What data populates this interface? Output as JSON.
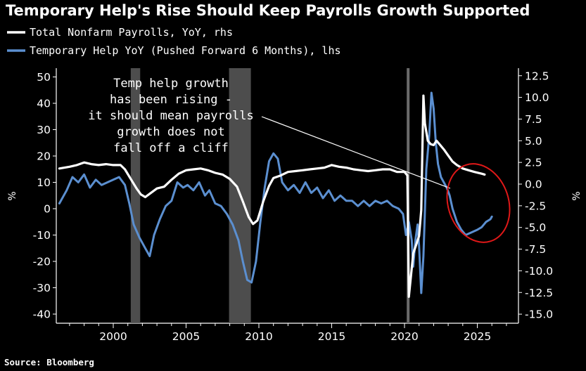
{
  "chart_data": {
    "type": "line",
    "title": "Temporary Help's Rise Should Keep Payrolls Growth Supported",
    "source": "Source: Bloomberg",
    "left_axis": {
      "label": "%",
      "ylim": [
        -45,
        55
      ],
      "ticks": [
        50,
        40,
        30,
        20,
        10,
        0,
        -10,
        -20,
        -30,
        -40
      ],
      "tick_labels": [
        "50",
        "40",
        "30",
        "20",
        "10",
        "0",
        "-10",
        "-20",
        "-30",
        "-40"
      ]
    },
    "right_axis": {
      "label": "%",
      "ylim": [
        -15.5,
        14.1
      ],
      "ticks": [
        12.5,
        10,
        7.5,
        5,
        2.5,
        0,
        -2.5,
        -5,
        -7.5,
        -10,
        -12.5,
        -15
      ],
      "tick_labels": [
        "12.5",
        "10.0",
        "7.5",
        "5.0",
        "2.5",
        "0.0",
        "-2.5",
        "-5.0",
        "-7.5",
        "-10.0",
        "-12.5",
        "-15.0"
      ]
    },
    "x_axis": {
      "xlim": [
        1996.3,
        2027.4
      ],
      "ticks": [
        2000,
        2005,
        2010,
        2015,
        2020,
        2025
      ],
      "tick_labels": [
        "2000",
        "2005",
        "2010",
        "2015",
        "2020",
        "2025"
      ]
    },
    "recessions": [
      {
        "start": 2001.2,
        "end": 2001.85
      },
      {
        "start": 2007.95,
        "end": 2009.45
      }
    ],
    "covid_line_x": 2020.25,
    "series": [
      {
        "name": "Total Nonfarm Payrolls, YoY, rhs",
        "axis": "right",
        "color": "#ffffff",
        "points": [
          [
            1996.3,
            1.8
          ],
          [
            1997.0,
            2.0
          ],
          [
            1997.5,
            2.2
          ],
          [
            1998.0,
            2.5
          ],
          [
            1998.5,
            2.3
          ],
          [
            1999.0,
            2.2
          ],
          [
            1999.5,
            2.3
          ],
          [
            2000.0,
            2.2
          ],
          [
            2000.5,
            2.2
          ],
          [
            2000.8,
            1.7
          ],
          [
            2001.2,
            0.6
          ],
          [
            2001.6,
            -0.5
          ],
          [
            2001.9,
            -1.2
          ],
          [
            2002.2,
            -1.5
          ],
          [
            2002.6,
            -1.0
          ],
          [
            2003.0,
            -0.5
          ],
          [
            2003.5,
            -0.3
          ],
          [
            2004.0,
            0.5
          ],
          [
            2004.5,
            1.2
          ],
          [
            2005.0,
            1.6
          ],
          [
            2005.5,
            1.7
          ],
          [
            2006.0,
            1.8
          ],
          [
            2006.5,
            1.6
          ],
          [
            2007.0,
            1.3
          ],
          [
            2007.5,
            1.1
          ],
          [
            2008.0,
            0.6
          ],
          [
            2008.5,
            -0.3
          ],
          [
            2008.9,
            -2.0
          ],
          [
            2009.3,
            -3.8
          ],
          [
            2009.6,
            -4.6
          ],
          [
            2009.9,
            -4.2
          ],
          [
            2010.3,
            -2.0
          ],
          [
            2010.7,
            -0.2
          ],
          [
            2011.0,
            0.7
          ],
          [
            2011.5,
            1.0
          ],
          [
            2012.0,
            1.4
          ],
          [
            2012.5,
            1.5
          ],
          [
            2013.0,
            1.6
          ],
          [
            2013.5,
            1.7
          ],
          [
            2014.0,
            1.8
          ],
          [
            2014.5,
            1.9
          ],
          [
            2015.0,
            2.2
          ],
          [
            2015.5,
            2.0
          ],
          [
            2016.0,
            1.9
          ],
          [
            2016.5,
            1.7
          ],
          [
            2017.0,
            1.6
          ],
          [
            2017.5,
            1.5
          ],
          [
            2018.0,
            1.6
          ],
          [
            2018.5,
            1.7
          ],
          [
            2019.0,
            1.7
          ],
          [
            2019.5,
            1.4
          ],
          [
            2020.0,
            1.4
          ],
          [
            2020.2,
            1.0
          ],
          [
            2020.3,
            -13.0
          ],
          [
            2020.45,
            -10.5
          ],
          [
            2020.6,
            -8.0
          ],
          [
            2020.8,
            -7.0
          ],
          [
            2021.0,
            -6.0
          ],
          [
            2021.15,
            -3.0
          ],
          [
            2021.3,
            10.2
          ],
          [
            2021.4,
            7.0
          ],
          [
            2021.6,
            5.0
          ],
          [
            2021.8,
            4.6
          ],
          [
            2022.0,
            4.5
          ],
          [
            2022.2,
            5.0
          ],
          [
            2022.4,
            4.6
          ],
          [
            2022.7,
            4.0
          ],
          [
            2023.0,
            3.3
          ],
          [
            2023.3,
            2.6
          ],
          [
            2023.6,
            2.2
          ],
          [
            2024.0,
            1.8
          ],
          [
            2024.4,
            1.6
          ],
          [
            2024.8,
            1.4
          ],
          [
            2025.3,
            1.2
          ],
          [
            2025.5,
            1.1
          ]
        ]
      },
      {
        "name": "Temporary Help YoY (Pushed Forward 6 Months), lhs",
        "axis": "left",
        "color": "#5b8fd0",
        "points": [
          [
            1996.3,
            2
          ],
          [
            1996.8,
            7
          ],
          [
            1997.2,
            12
          ],
          [
            1997.6,
            10
          ],
          [
            1998.0,
            13
          ],
          [
            1998.4,
            8
          ],
          [
            1998.8,
            11
          ],
          [
            1999.2,
            9
          ],
          [
            1999.6,
            10
          ],
          [
            2000.0,
            11
          ],
          [
            2000.4,
            12
          ],
          [
            2000.8,
            9
          ],
          [
            2001.1,
            2
          ],
          [
            2001.4,
            -6
          ],
          [
            2001.8,
            -11
          ],
          [
            2002.2,
            -15
          ],
          [
            2002.5,
            -18
          ],
          [
            2002.8,
            -10
          ],
          [
            2003.2,
            -4
          ],
          [
            2003.6,
            1
          ],
          [
            2004.0,
            3
          ],
          [
            2004.4,
            10
          ],
          [
            2004.8,
            8
          ],
          [
            2005.1,
            9
          ],
          [
            2005.5,
            7
          ],
          [
            2005.9,
            10
          ],
          [
            2006.3,
            5
          ],
          [
            2006.6,
            7
          ],
          [
            2007.0,
            2
          ],
          [
            2007.4,
            1
          ],
          [
            2007.8,
            -2
          ],
          [
            2008.2,
            -6
          ],
          [
            2008.6,
            -12
          ],
          [
            2008.9,
            -20
          ],
          [
            2009.2,
            -27
          ],
          [
            2009.5,
            -28
          ],
          [
            2009.8,
            -20
          ],
          [
            2010.1,
            -5
          ],
          [
            2010.4,
            8
          ],
          [
            2010.7,
            18
          ],
          [
            2011.0,
            21
          ],
          [
            2011.3,
            19
          ],
          [
            2011.6,
            10
          ],
          [
            2012.0,
            7
          ],
          [
            2012.4,
            9
          ],
          [
            2012.8,
            6
          ],
          [
            2013.2,
            10
          ],
          [
            2013.6,
            6
          ],
          [
            2014.0,
            8
          ],
          [
            2014.4,
            4
          ],
          [
            2014.8,
            7
          ],
          [
            2015.2,
            3
          ],
          [
            2015.6,
            5
          ],
          [
            2016.0,
            3
          ],
          [
            2016.4,
            3
          ],
          [
            2016.8,
            1
          ],
          [
            2017.2,
            3
          ],
          [
            2017.6,
            1
          ],
          [
            2018.0,
            3
          ],
          [
            2018.4,
            2
          ],
          [
            2018.8,
            3
          ],
          [
            2019.2,
            1
          ],
          [
            2019.6,
            0
          ],
          [
            2019.9,
            -2
          ],
          [
            2020.1,
            -10
          ],
          [
            2020.3,
            -5
          ],
          [
            2020.5,
            -12
          ],
          [
            2020.6,
            -22
          ],
          [
            2020.75,
            -12
          ],
          [
            2020.9,
            -6
          ],
          [
            2021.0,
            -14
          ],
          [
            2021.15,
            -32
          ],
          [
            2021.3,
            -18
          ],
          [
            2021.5,
            15
          ],
          [
            2021.7,
            28
          ],
          [
            2021.85,
            44
          ],
          [
            2022.0,
            38
          ],
          [
            2022.15,
            25
          ],
          [
            2022.3,
            17
          ],
          [
            2022.5,
            12
          ],
          [
            2022.7,
            10
          ],
          [
            2022.9,
            8
          ],
          [
            2023.1,
            5
          ],
          [
            2023.3,
            0
          ],
          [
            2023.6,
            -5
          ],
          [
            2023.9,
            -8
          ],
          [
            2024.2,
            -10
          ],
          [
            2024.6,
            -9
          ],
          [
            2025.0,
            -8
          ],
          [
            2025.3,
            -7
          ],
          [
            2025.6,
            -5
          ],
          [
            2025.9,
            -4
          ],
          [
            2026.0,
            -3
          ]
        ]
      }
    ],
    "annotation": {
      "lines": [
        "Temp help growth",
        "has been rising -",
        "it should mean payrolls",
        "growth does not",
        "fall off a cliff"
      ]
    },
    "highlight": "red circle around 2023-2026 values"
  }
}
